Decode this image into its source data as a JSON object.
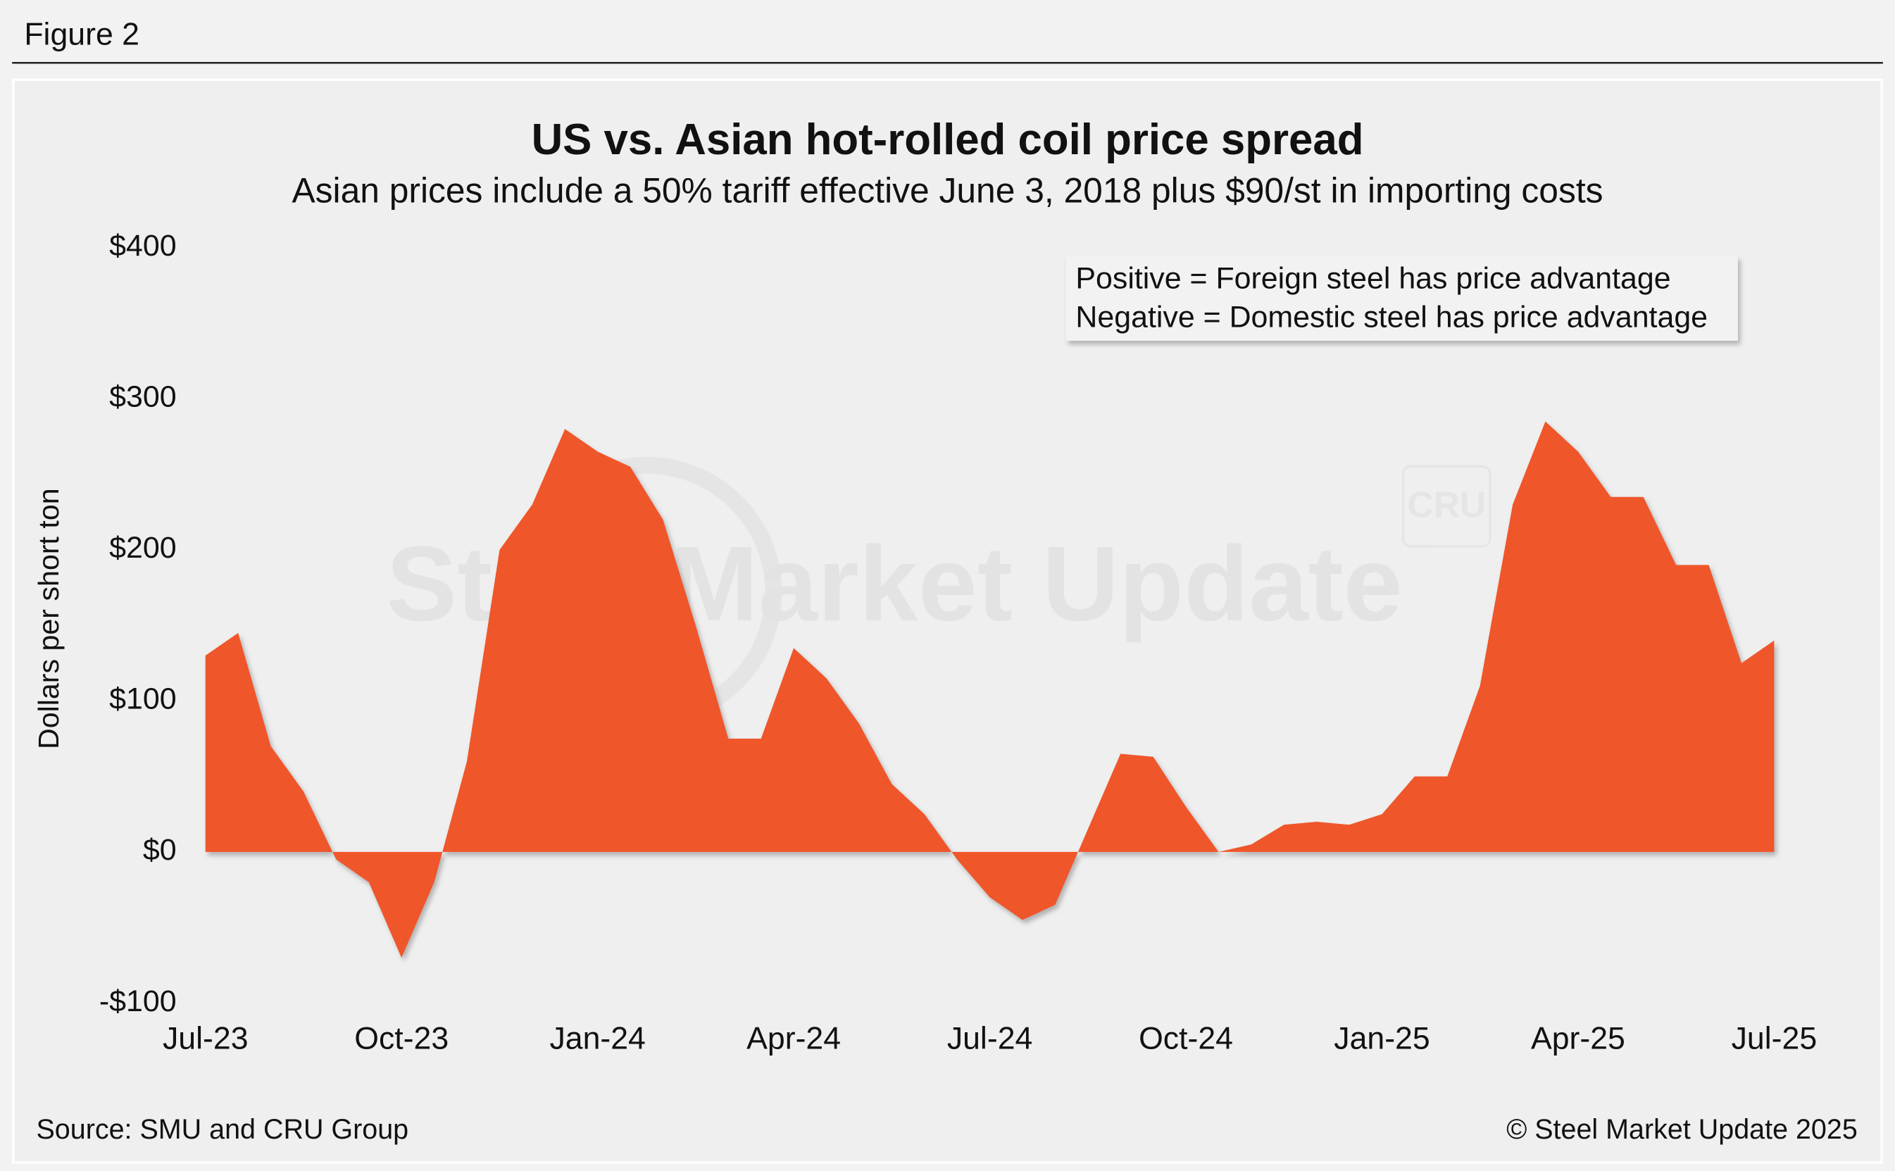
{
  "figure_label": "Figure 2",
  "chart_data": {
    "type": "area",
    "title": "US vs. Asian hot-rolled coil price spread",
    "subtitle": "Asian prices include a 50% tariff effective June 3, 2018 plus $90/st in importing costs",
    "ylabel": "Dollars per short ton",
    "annotations": [
      "Positive = Foreign steel has price advantage",
      "Negative = Domestic steel has price advantage"
    ],
    "watermark": [
      "Steel Market Update",
      "CRU"
    ],
    "source": "Source: SMU and CRU Group",
    "copyright": "© Steel Market Update 2025",
    "categories": [
      "Jul-23",
      null,
      null,
      null,
      null,
      null,
      "Oct-23",
      null,
      null,
      null,
      null,
      null,
      "Jan-24",
      null,
      null,
      null,
      null,
      null,
      "Apr-24",
      null,
      null,
      null,
      null,
      null,
      "Jul-24",
      null,
      null,
      null,
      null,
      null,
      "Oct-24",
      null,
      null,
      null,
      null,
      null,
      "Jan-25",
      null,
      null,
      null,
      null,
      null,
      "Apr-25",
      null,
      null,
      null,
      null,
      null,
      "Jul-25"
    ],
    "series": [
      {
        "name": "Price spread",
        "color": "#ef5629",
        "values": [
          130,
          145,
          70,
          40,
          -5,
          -20,
          -70,
          -20,
          60,
          200,
          230,
          280,
          265,
          255,
          220,
          150,
          75,
          75,
          135,
          115,
          85,
          45,
          25,
          -5,
          -30,
          -45,
          -35,
          15,
          65,
          63,
          30,
          0,
          5,
          18,
          20,
          18,
          25,
          50,
          50,
          110,
          230,
          285,
          265,
          235,
          235,
          190,
          190,
          125,
          140
        ]
      }
    ],
    "ylim": [
      -100,
      400
    ],
    "yticks": [
      {
        "value": -100,
        "label": "-$100"
      },
      {
        "value": 0,
        "label": "$0"
      },
      {
        "value": 100,
        "label": "$100"
      },
      {
        "value": 200,
        "label": "$200"
      },
      {
        "value": 300,
        "label": "$300"
      },
      {
        "value": 400,
        "label": "$400"
      }
    ],
    "grid": false
  }
}
